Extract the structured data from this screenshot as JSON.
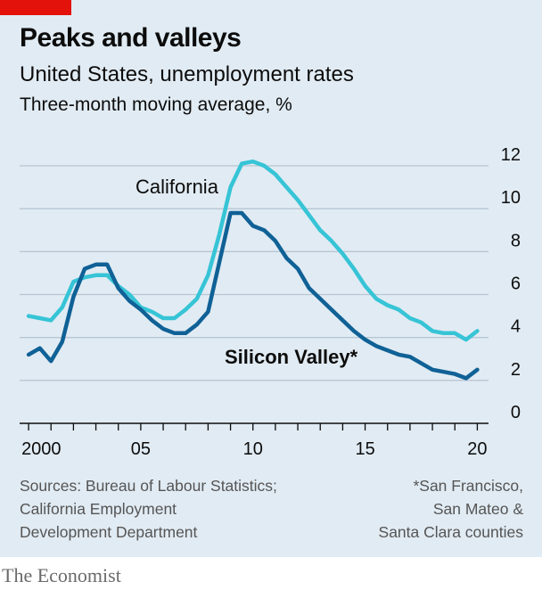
{
  "header": {
    "title": "Peaks and valleys",
    "subtitle": "United States, unemployment rates",
    "units": "Three-month moving average, %"
  },
  "footer": {
    "source": "Sources: Bureau of Labour Statistics;\nCalifornia Employment\nDevelopment Department",
    "footnote": "*San Francisco,\nSan Mateo &\nSanta Clara counties",
    "brand": "The Economist"
  },
  "colors": {
    "accent": "#e3120b",
    "background": "#e1ebf3",
    "california": "#36c4d6",
    "silicon_valley": "#0f6196",
    "grid": "#b7c6d3"
  },
  "chart_data": {
    "type": "line",
    "title": "Peaks and valleys",
    "subtitle": "United States, unemployment rates",
    "ylabel": "Three-month moving average, %",
    "xlabel": "",
    "xlim": [
      1999.6,
      2020.5
    ],
    "ylim": [
      0,
      12
    ],
    "y_ticks": [
      0,
      2,
      4,
      6,
      8,
      10,
      12
    ],
    "y_tick_labels": [
      "0",
      "2",
      "4",
      "6",
      "8",
      "10",
      "12"
    ],
    "x_ticks": [
      2000,
      2005,
      2010,
      2015,
      2020
    ],
    "x_tick_labels": [
      "2000",
      "05",
      "10",
      "15",
      "20"
    ],
    "grid": true,
    "series": [
      {
        "name": "California",
        "label": "California",
        "x": [
          2000.0,
          2000.5,
          2001.0,
          2001.5,
          2002.0,
          2002.5,
          2003.0,
          2003.5,
          2004.0,
          2004.5,
          2005.0,
          2005.5,
          2006.0,
          2006.5,
          2007.0,
          2007.5,
          2008.0,
          2008.5,
          2009.0,
          2009.5,
          2010.0,
          2010.5,
          2011.0,
          2011.5,
          2012.0,
          2012.5,
          2013.0,
          2013.5,
          2014.0,
          2014.5,
          2015.0,
          2015.5,
          2016.0,
          2016.5,
          2017.0,
          2017.5,
          2018.0,
          2018.5,
          2019.0,
          2019.5,
          2020.0
        ],
        "values": [
          5.0,
          4.9,
          4.8,
          5.4,
          6.6,
          6.8,
          6.9,
          6.9,
          6.4,
          6.0,
          5.4,
          5.2,
          4.9,
          4.9,
          5.3,
          5.8,
          6.9,
          8.8,
          11.0,
          12.1,
          12.2,
          12.0,
          11.6,
          11.0,
          10.4,
          9.7,
          9.0,
          8.5,
          7.9,
          7.2,
          6.4,
          5.8,
          5.5,
          5.3,
          4.9,
          4.7,
          4.3,
          4.2,
          4.2,
          3.9,
          4.3
        ]
      },
      {
        "name": "Silicon Valley*",
        "label": "Silicon Valley*",
        "x": [
          2000.0,
          2000.5,
          2001.0,
          2001.5,
          2002.0,
          2002.5,
          2003.0,
          2003.5,
          2004.0,
          2004.5,
          2005.0,
          2005.5,
          2006.0,
          2006.5,
          2007.0,
          2007.5,
          2008.0,
          2008.5,
          2009.0,
          2009.5,
          2010.0,
          2010.5,
          2011.0,
          2011.5,
          2012.0,
          2012.5,
          2013.0,
          2013.5,
          2014.0,
          2014.5,
          2015.0,
          2015.5,
          2016.0,
          2016.5,
          2017.0,
          2017.5,
          2018.0,
          2018.5,
          2019.0,
          2019.5,
          2020.0
        ],
        "values": [
          3.2,
          3.5,
          2.9,
          3.8,
          5.9,
          7.2,
          7.4,
          7.4,
          6.3,
          5.7,
          5.3,
          4.8,
          4.4,
          4.2,
          4.2,
          4.6,
          5.2,
          7.5,
          9.8,
          9.8,
          9.2,
          9.0,
          8.5,
          7.7,
          7.2,
          6.3,
          5.8,
          5.3,
          4.8,
          4.3,
          3.9,
          3.6,
          3.4,
          3.2,
          3.1,
          2.8,
          2.5,
          2.4,
          2.3,
          2.1,
          2.5
        ]
      }
    ]
  }
}
